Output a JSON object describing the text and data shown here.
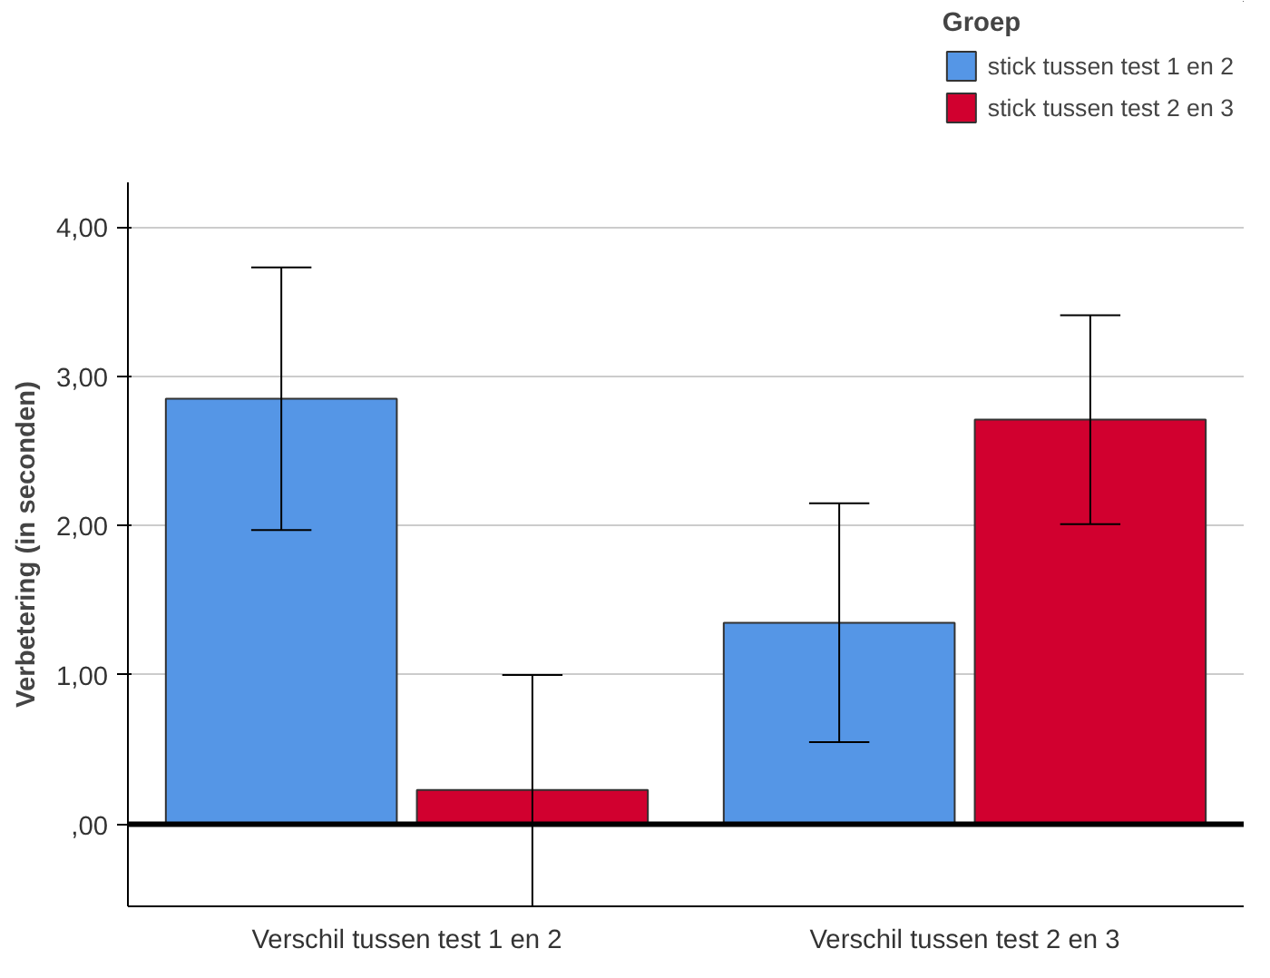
{
  "chart_data": {
    "type": "bar",
    "ylabel": "Verbetering (in seconden)",
    "legend_title": "Groep",
    "categories": [
      "Verschil tussen test 1 en 2",
      "Verschil tussen test 2 en 3"
    ],
    "series": [
      {
        "name": "stick tussen test 1 en 2",
        "color": "#5596e6",
        "values": [
          2.85,
          1.35
        ],
        "errors": [
          [
            1.97,
            3.73
          ],
          [
            0.55,
            2.15
          ]
        ]
      },
      {
        "name": "stick tussen test 2 en 3",
        "color": "#d1002f",
        "values": [
          0.23,
          2.71
        ],
        "errors": [
          [
            -0.55,
            1.0
          ],
          [
            2.01,
            3.41
          ]
        ]
      }
    ],
    "ylim": [
      -0.55,
      4.3
    ],
    "yticks": [
      {
        "value": 0,
        "label": ",00"
      },
      {
        "value": 1,
        "label": "1,00"
      },
      {
        "value": 2,
        "label": "2,00"
      },
      {
        "value": 3,
        "label": "3,00"
      },
      {
        "value": 4,
        "label": "4,00"
      }
    ],
    "grid": "y",
    "legend": "top right",
    "ref_lines": [
      {
        "axis": "y",
        "value": 0,
        "label": null,
        "color": "#000000"
      }
    ]
  }
}
